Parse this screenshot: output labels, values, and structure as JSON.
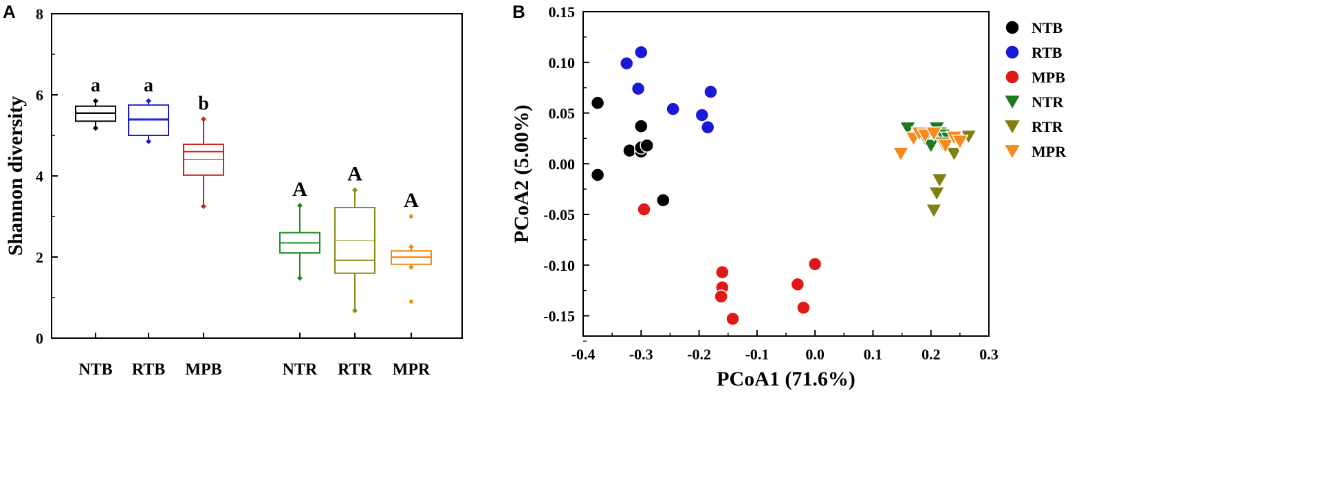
{
  "chart_data": [
    {
      "type": "box",
      "panel_label": "A",
      "ylabel": "Shannon diversity",
      "xlabel": "",
      "ylim": [
        0,
        8
      ],
      "yticks": [
        "0",
        "2",
        "4",
        "6",
        "8"
      ],
      "boxes": [
        {
          "group": "NTB",
          "color": "#000000",
          "whisker_low": 5.18,
          "q1": 5.35,
          "median": 5.55,
          "q3": 5.72,
          "whisker_high": 5.85,
          "outliers": [],
          "letter": "a"
        },
        {
          "group": "RTB",
          "color": "#1a1ad6",
          "whisker_low": 4.85,
          "q1": 5.0,
          "median": 5.4,
          "q3": 5.75,
          "whisker_high": 5.85,
          "outliers": [],
          "letter": "a"
        },
        {
          "group": "MPB",
          "color": "#d42020",
          "whisker_low": 3.25,
          "q1": 4.02,
          "median": 4.6,
          "q3": 4.78,
          "whisker_high": 5.4,
          "outliers": [],
          "letter": "b"
        },
        {
          "group": "NTR",
          "color": "#1f8a1f",
          "whisker_low": 1.48,
          "q1": 2.1,
          "median": 2.35,
          "q3": 2.6,
          "whisker_high": 3.27,
          "outliers": [],
          "letter": "A"
        },
        {
          "group": "RTR",
          "color": "#8a8a1a",
          "whisker_low": 0.68,
          "q1": 1.6,
          "median": 1.92,
          "q3": 3.22,
          "whisker_high": 3.65,
          "outliers": [],
          "letter": "A"
        },
        {
          "group": "MPR",
          "color": "#f08a1a",
          "whisker_low": 1.75,
          "q1": 1.82,
          "median": 2.0,
          "q3": 2.15,
          "whisker_high": 2.25,
          "outliers": [
            0.9,
            3.0
          ],
          "letter": "A"
        }
      ]
    },
    {
      "type": "scatter",
      "panel_label": "B",
      "xlabel": "PCoA1 (71.6%)",
      "ylabel": "PCoA2 (5.00%)",
      "xlim": [
        -0.4,
        0.3
      ],
      "ylim": [
        -0.17,
        0.15
      ],
      "xticks": [
        "-0.4",
        "-0.3",
        "-0.2",
        "-0.1",
        "0.0",
        "0.1",
        "0.2",
        "0.3"
      ],
      "yticks": [
        "0.15",
        "0.10",
        "0.05",
        "0.00",
        "-0.05",
        "-0.10",
        "-0.15"
      ],
      "legend_position": "right",
      "series": [
        {
          "name": "NTB",
          "marker": "circle",
          "color": "#000000",
          "points": [
            [
              -0.375,
              0.06
            ],
            [
              -0.375,
              -0.011
            ],
            [
              -0.3,
              0.037
            ],
            [
              -0.32,
              0.013
            ],
            [
              -0.3,
              0.012
            ],
            [
              -0.3,
              0.016
            ],
            [
              -0.29,
              0.018
            ],
            [
              -0.262,
              -0.036
            ]
          ]
        },
        {
          "name": "RTB",
          "marker": "circle",
          "color": "#1a1ad6",
          "points": [
            [
              -0.325,
              0.099
            ],
            [
              -0.3,
              0.11
            ],
            [
              -0.305,
              0.074
            ],
            [
              -0.245,
              0.054
            ],
            [
              -0.195,
              0.048
            ],
            [
              -0.185,
              0.036
            ],
            [
              -0.18,
              0.071
            ]
          ]
        },
        {
          "name": "MPB",
          "marker": "circle",
          "color": "#e01818",
          "points": [
            [
              -0.295,
              -0.045
            ],
            [
              -0.16,
              -0.107
            ],
            [
              -0.16,
              -0.122
            ],
            [
              -0.162,
              -0.131
            ],
            [
              -0.142,
              -0.153
            ],
            [
              -0.03,
              -0.119
            ],
            [
              -0.02,
              -0.142
            ],
            [
              0.0,
              -0.099
            ]
          ]
        },
        {
          "name": "NTR",
          "marker": "triangle-down",
          "color": "#1f7a1f",
          "points": [
            [
              0.16,
              0.035
            ],
            [
              0.18,
              0.03
            ],
            [
              0.19,
              0.025
            ],
            [
              0.2,
              0.018
            ],
            [
              0.21,
              0.035
            ],
            [
              0.215,
              0.03
            ],
            [
              0.22,
              0.028
            ],
            [
              0.23,
              0.025
            ]
          ]
        },
        {
          "name": "RTR",
          "marker": "triangle-down",
          "color": "#7f7f12",
          "points": [
            [
              0.205,
              -0.046
            ],
            [
              0.21,
              -0.029
            ],
            [
              0.215,
              -0.016
            ],
            [
              0.24,
              0.01
            ],
            [
              0.25,
              0.02
            ],
            [
              0.265,
              0.027
            ],
            [
              0.22,
              0.02
            ]
          ]
        },
        {
          "name": "MPR",
          "marker": "triangle-down",
          "color": "#f48a20",
          "points": [
            [
              0.148,
              0.01
            ],
            [
              0.17,
              0.025
            ],
            [
              0.18,
              0.03
            ],
            [
              0.19,
              0.028
            ],
            [
              0.225,
              0.018
            ],
            [
              0.24,
              0.026
            ],
            [
              0.25,
              0.022
            ],
            [
              0.205,
              0.03
            ]
          ]
        }
      ]
    }
  ]
}
